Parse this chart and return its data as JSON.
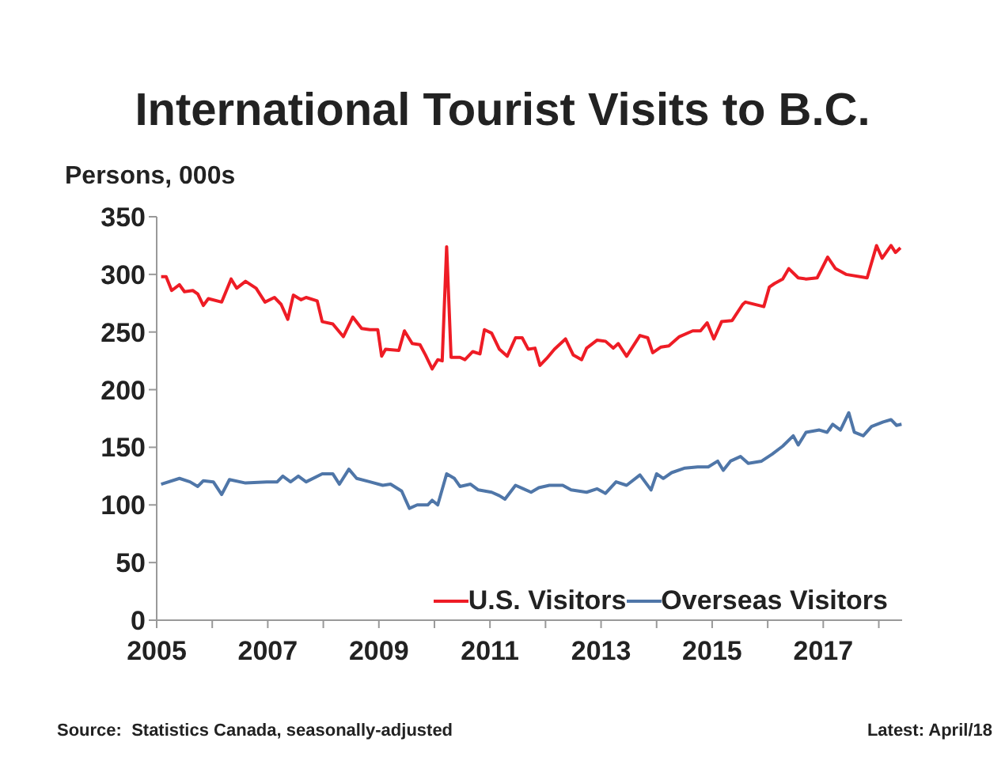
{
  "chart_data": {
    "type": "line",
    "title": "International Tourist Visits to B.C.",
    "ylabel": "Persons, 000s",
    "annotations": [
      "Source:  Statistics Canada, seasonally-adjusted",
      "Latest: April/18"
    ],
    "series": [
      {
        "name": "U.S. Visitors",
        "color": "#ee1c25",
        "x": [
          2005.08,
          2005.17,
          2005.27,
          2005.41,
          2005.5,
          2005.65,
          2005.74,
          2005.84,
          2005.93,
          2006.17,
          2006.34,
          2006.44,
          2006.6,
          2006.79,
          2006.95,
          2007.12,
          2007.24,
          2007.36,
          2007.46,
          2007.6,
          2007.69,
          2007.89,
          2007.98,
          2008.17,
          2008.36,
          2008.53,
          2008.69,
          2008.84,
          2008.98,
          2009.05,
          2009.12,
          2009.36,
          2009.46,
          2009.6,
          2009.74,
          2009.84,
          2009.96,
          2010.06,
          2010.14,
          2010.22,
          2010.3,
          2010.46,
          2010.55,
          2010.69,
          2010.82,
          2010.9,
          2011.03,
          2011.17,
          2011.31,
          2011.46,
          2011.58,
          2011.69,
          2011.81,
          2011.9,
          2012.02,
          2012.16,
          2012.36,
          2012.5,
          2012.65,
          2012.74,
          2012.93,
          2013.08,
          2013.22,
          2013.31,
          2013.46,
          2013.7,
          2013.84,
          2013.93,
          2014.08,
          2014.22,
          2014.41,
          2014.65,
          2014.79,
          2014.91,
          2015.03,
          2015.17,
          2015.36,
          2015.55,
          2015.6,
          2015.93,
          2016.03,
          2016.12,
          2016.27,
          2016.38,
          2016.55,
          2016.69,
          2016.89,
          2017.08,
          2017.22,
          2017.41,
          2017.79,
          2017.96,
          2018.06,
          2018.22,
          2018.3,
          2018.39
        ],
        "values": [
          298,
          298,
          286,
          291,
          285,
          286,
          283,
          273,
          279,
          276,
          296,
          288,
          294,
          288,
          276,
          280,
          274,
          261,
          282,
          278,
          280,
          277,
          259,
          257,
          246,
          263,
          253,
          252,
          252,
          229,
          235,
          234,
          251,
          240,
          239,
          230,
          218,
          226,
          225,
          324,
          228,
          228,
          226,
          233,
          231,
          252,
          249,
          235,
          229,
          245,
          245,
          235,
          236,
          221,
          227,
          235,
          244,
          230,
          226,
          236,
          243,
          242,
          236,
          240,
          229,
          247,
          245,
          232,
          237,
          238,
          246,
          251,
          251,
          258,
          244,
          259,
          260,
          274,
          276,
          272,
          289,
          292,
          296,
          305,
          297,
          296,
          297,
          315,
          305,
          300,
          297,
          325,
          314,
          325,
          319,
          323
        ]
      },
      {
        "name": "Overseas Visitors",
        "color": "#4f76a8",
        "x": [
          2005.08,
          2005.41,
          2005.6,
          2005.74,
          2005.84,
          2006.02,
          2006.17,
          2006.31,
          2006.6,
          2006.98,
          2007.17,
          2007.27,
          2007.41,
          2007.55,
          2007.69,
          2007.98,
          2008.17,
          2008.29,
          2008.46,
          2008.6,
          2008.84,
          2009.07,
          2009.21,
          2009.41,
          2009.55,
          2009.69,
          2009.88,
          2009.96,
          2010.06,
          2010.22,
          2010.36,
          2010.46,
          2010.65,
          2010.79,
          2011.03,
          2011.17,
          2011.27,
          2011.46,
          2011.6,
          2011.74,
          2011.88,
          2012.07,
          2012.31,
          2012.46,
          2012.74,
          2012.93,
          2013.08,
          2013.27,
          2013.46,
          2013.7,
          2013.9,
          2014.0,
          2014.12,
          2014.27,
          2014.51,
          2014.74,
          2014.93,
          2015.1,
          2015.2,
          2015.33,
          2015.51,
          2015.65,
          2015.89,
          2016.08,
          2016.27,
          2016.46,
          2016.55,
          2016.69,
          2016.93,
          2017.07,
          2017.17,
          2017.31,
          2017.46,
          2017.56,
          2017.72,
          2017.87,
          2018.08,
          2018.22,
          2018.32,
          2018.41
        ],
        "values": [
          118,
          123,
          120,
          116,
          121,
          120,
          109,
          122,
          119,
          120,
          120,
          125,
          120,
          125,
          120,
          127,
          127,
          118,
          131,
          123,
          120,
          117,
          118,
          112,
          97,
          100,
          100,
          104,
          100,
          127,
          123,
          116,
          118,
          113,
          111,
          108,
          105,
          117,
          114,
          111,
          115,
          117,
          117,
          113,
          111,
          114,
          110,
          120,
          117,
          126,
          113,
          127,
          123,
          128,
          132,
          133,
          133,
          138,
          130,
          138,
          142,
          136,
          138,
          144,
          151,
          160,
          152,
          163,
          165,
          163,
          170,
          165,
          180,
          163,
          160,
          168,
          172,
          174,
          169,
          170
        ]
      }
    ],
    "xlim": [
      2005,
      2018.42
    ],
    "xticks": [
      2005,
      {
        "value": 2006,
        "label": null
      },
      2007,
      {
        "value": 2008,
        "label": null
      },
      2009,
      {
        "value": 2010,
        "label": null
      },
      2011,
      {
        "value": 2012,
        "label": null
      },
      2013,
      {
        "value": 2014,
        "label": null
      },
      2015,
      {
        "value": 2016,
        "label": null
      },
      2017,
      {
        "value": 2018,
        "label": null
      }
    ],
    "ylim": [
      0,
      350
    ],
    "yticks": [
      0,
      50,
      100,
      150,
      200,
      250,
      300,
      350
    ],
    "legend": "bottom right",
    "marker": "none",
    "line_style": "solid"
  }
}
